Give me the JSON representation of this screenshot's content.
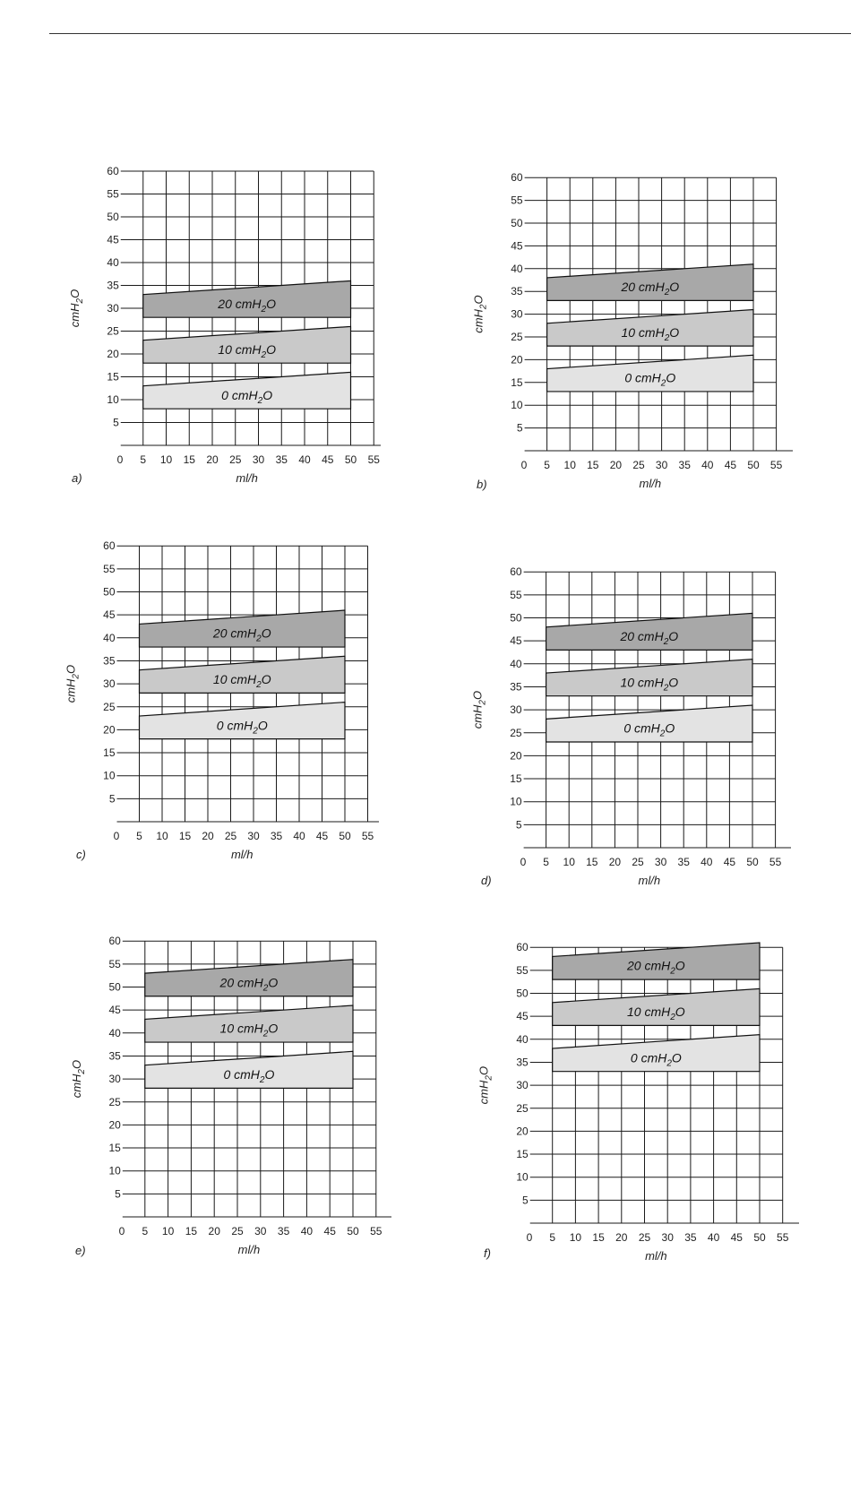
{
  "colors": {
    "grid": "#1a1a1a",
    "band_0": "#e3e3e3",
    "band_10": "#c9c9c9",
    "band_20": "#a8a8a8"
  },
  "chart_data": [
    {
      "type": "area",
      "panel": "a)",
      "xlabel": "ml/h",
      "ylabel": "cmH2O",
      "xlim": [
        0,
        55
      ],
      "ylim": [
        0,
        60
      ],
      "x_ticks": [
        "0",
        "5",
        "10",
        "15",
        "20",
        "25",
        "30",
        "35",
        "40",
        "45",
        "50",
        "55"
      ],
      "y_ticks": [
        "5",
        "10",
        "15",
        "20",
        "25",
        "30",
        "35",
        "40",
        "45",
        "50",
        "55",
        "60"
      ],
      "grid": true,
      "series": [
        {
          "label_main": "0 cmH",
          "label_sub": "2",
          "label_end": "O",
          "x": [
            5,
            50
          ],
          "lower": [
            8,
            8
          ],
          "upper": [
            13,
            16
          ]
        },
        {
          "label_main": "10 cmH",
          "label_sub": "2",
          "label_end": "O",
          "x": [
            5,
            50
          ],
          "lower": [
            18,
            18
          ],
          "upper": [
            23,
            26
          ]
        },
        {
          "label_main": "20 cmH",
          "label_sub": "2",
          "label_end": "O",
          "x": [
            5,
            50
          ],
          "lower": [
            28,
            28
          ],
          "upper": [
            33,
            36
          ]
        }
      ]
    },
    {
      "type": "area",
      "panel": "b)",
      "xlabel": "ml/h",
      "ylabel": "cmH2O",
      "xlim": [
        0,
        55
      ],
      "ylim": [
        0,
        60
      ],
      "x_ticks": [
        "0",
        "5",
        "10",
        "15",
        "20",
        "25",
        "30",
        "35",
        "40",
        "45",
        "50",
        "55"
      ],
      "y_ticks": [
        "5",
        "10",
        "15",
        "20",
        "25",
        "30",
        "35",
        "40",
        "45",
        "50",
        "55",
        "60"
      ],
      "grid": true,
      "series": [
        {
          "label_main": "0 cmH",
          "label_sub": "2",
          "label_end": "O",
          "x": [
            5,
            50
          ],
          "lower": [
            13,
            13
          ],
          "upper": [
            18,
            21
          ]
        },
        {
          "label_main": "10 cmH",
          "label_sub": "2",
          "label_end": "O",
          "x": [
            5,
            50
          ],
          "lower": [
            23,
            23
          ],
          "upper": [
            28,
            31
          ]
        },
        {
          "label_main": "20 cmH",
          "label_sub": "2",
          "label_end": "O",
          "x": [
            5,
            50
          ],
          "lower": [
            33,
            33
          ],
          "upper": [
            38,
            41
          ]
        }
      ]
    },
    {
      "type": "area",
      "panel": "c)",
      "xlabel": "ml/h",
      "ylabel": "cmH2O",
      "xlim": [
        0,
        55
      ],
      "ylim": [
        0,
        60
      ],
      "x_ticks": [
        "0",
        "5",
        "10",
        "15",
        "20",
        "25",
        "30",
        "35",
        "40",
        "45",
        "50",
        "55"
      ],
      "y_ticks": [
        "5",
        "10",
        "15",
        "20",
        "25",
        "30",
        "35",
        "40",
        "45",
        "50",
        "55",
        "60"
      ],
      "grid": true,
      "series": [
        {
          "label_main": "0 cmH",
          "label_sub": "2",
          "label_end": "O",
          "x": [
            5,
            50
          ],
          "lower": [
            18,
            18
          ],
          "upper": [
            23,
            26
          ]
        },
        {
          "label_main": "10 cmH",
          "label_sub": "2",
          "label_end": "O",
          "x": [
            5,
            50
          ],
          "lower": [
            28,
            28
          ],
          "upper": [
            33,
            36
          ]
        },
        {
          "label_main": "20 cmH",
          "label_sub": "2",
          "label_end": "O",
          "x": [
            5,
            50
          ],
          "lower": [
            38,
            38
          ],
          "upper": [
            43,
            46
          ]
        }
      ]
    },
    {
      "type": "area",
      "panel": "d)",
      "xlabel": "ml/h",
      "ylabel": "cmH2O",
      "xlim": [
        0,
        55
      ],
      "ylim": [
        0,
        60
      ],
      "x_ticks": [
        "0",
        "5",
        "10",
        "15",
        "20",
        "25",
        "30",
        "35",
        "40",
        "45",
        "50",
        "55"
      ],
      "y_ticks": [
        "5",
        "10",
        "15",
        "20",
        "25",
        "30",
        "35",
        "40",
        "45",
        "50",
        "55",
        "60"
      ],
      "grid": true,
      "series": [
        {
          "label_main": "0 cmH",
          "label_sub": "2",
          "label_end": "O",
          "x": [
            5,
            50
          ],
          "lower": [
            23,
            23
          ],
          "upper": [
            28,
            31
          ]
        },
        {
          "label_main": "10 cmH",
          "label_sub": "2",
          "label_end": "O",
          "x": [
            5,
            50
          ],
          "lower": [
            33,
            33
          ],
          "upper": [
            38,
            41
          ]
        },
        {
          "label_main": "20 cmH",
          "label_sub": "2",
          "label_end": "O",
          "x": [
            5,
            50
          ],
          "lower": [
            43,
            43
          ],
          "upper": [
            48,
            51
          ]
        }
      ]
    },
    {
      "type": "area",
      "panel": "e)",
      "xlabel": "ml/h",
      "ylabel": "cmH2O",
      "xlim": [
        0,
        55
      ],
      "ylim": [
        0,
        60
      ],
      "x_ticks": [
        "0",
        "5",
        "10",
        "15",
        "20",
        "25",
        "30",
        "35",
        "40",
        "45",
        "50",
        "55"
      ],
      "y_ticks": [
        "5",
        "10",
        "15",
        "20",
        "25",
        "30",
        "35",
        "40",
        "45",
        "50",
        "55",
        "60"
      ],
      "grid": true,
      "series": [
        {
          "label_main": "0 cmH",
          "label_sub": "2",
          "label_end": "O",
          "x": [
            5,
            50
          ],
          "lower": [
            28,
            28
          ],
          "upper": [
            33,
            36
          ]
        },
        {
          "label_main": "10 cmH",
          "label_sub": "2",
          "label_end": "O",
          "x": [
            5,
            50
          ],
          "lower": [
            38,
            38
          ],
          "upper": [
            43,
            46
          ]
        },
        {
          "label_main": "20 cmH",
          "label_sub": "2",
          "label_end": "O",
          "x": [
            5,
            50
          ],
          "lower": [
            48,
            48
          ],
          "upper": [
            53,
            56
          ]
        }
      ]
    },
    {
      "type": "area",
      "panel": "f)",
      "xlabel": "ml/h",
      "ylabel": "cmH2O",
      "xlim": [
        0,
        55
      ],
      "ylim": [
        0,
        60
      ],
      "x_ticks": [
        "0",
        "5",
        "10",
        "15",
        "20",
        "25",
        "30",
        "35",
        "40",
        "45",
        "50",
        "55"
      ],
      "y_ticks": [
        "5",
        "10",
        "15",
        "20",
        "25",
        "30",
        "35",
        "40",
        "45",
        "50",
        "55",
        "60"
      ],
      "grid": true,
      "series": [
        {
          "label_main": "0 cmH",
          "label_sub": "2",
          "label_end": "O",
          "x": [
            5,
            50
          ],
          "lower": [
            33,
            33
          ],
          "upper": [
            38,
            41
          ]
        },
        {
          "label_main": "10 cmH",
          "label_sub": "2",
          "label_end": "O",
          "x": [
            5,
            50
          ],
          "lower": [
            43,
            43
          ],
          "upper": [
            48,
            51
          ]
        },
        {
          "label_main": "20 cmH",
          "label_sub": "2",
          "label_end": "O",
          "x": [
            5,
            50
          ],
          "lower": [
            53,
            53
          ],
          "upper": [
            58,
            61
          ]
        }
      ]
    }
  ]
}
